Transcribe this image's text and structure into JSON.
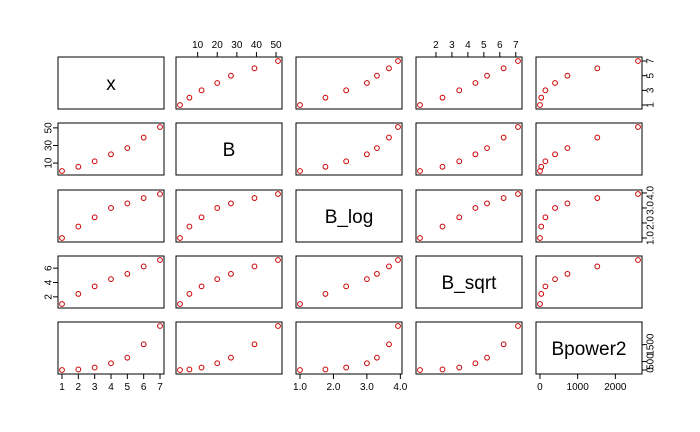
{
  "chart_data": {
    "type": "scatter",
    "title": "",
    "layout": "pairs-matrix",
    "variables": [
      {
        "name": "x",
        "values": [
          1,
          2,
          3,
          4,
          5,
          6,
          7
        ],
        "ticks": [
          1,
          3,
          5,
          7
        ],
        "lim": [
          1,
          7
        ]
      },
      {
        "name": "B",
        "values": [
          1,
          5.8,
          12,
          20,
          27,
          39,
          51
        ],
        "ticks": [
          10,
          20,
          30,
          40,
          50
        ],
        "lim": [
          1,
          51
        ]
      },
      {
        "name": "B_log",
        "values": [
          1,
          1.76,
          2.38,
          3.0,
          3.3,
          3.66,
          3.93
        ],
        "ticks": [
          1.0,
          2.0,
          3.0,
          4.0
        ],
        "lim": [
          1,
          3.93
        ]
      },
      {
        "name": "B_sqrt",
        "values": [
          1,
          2.41,
          3.46,
          4.47,
          5.2,
          6.24,
          7.14
        ],
        "ticks": [
          2,
          3,
          4,
          5,
          6,
          7
        ],
        "lim": [
          1,
          7.14
        ]
      },
      {
        "name": "Bpower2",
        "values": [
          1,
          34,
          144,
          400,
          729,
          1521,
          2601
        ],
        "ticks": [
          0,
          500,
          1500
        ],
        "lim": [
          1,
          2601
        ]
      }
    ],
    "tick_labels": {
      "x": [
        "1",
        "3",
        "5",
        "7"
      ],
      "B_bottom": [],
      "B": [
        "10",
        "20",
        "30",
        "40",
        "50"
      ],
      "B_log": [
        "1.0",
        "2.0",
        "3.0",
        "4.0"
      ],
      "B_sqrt": [
        "2",
        "3",
        "4",
        "5",
        "6",
        "7"
      ],
      "Bpower2": [
        "0",
        "500",
        "1500"
      ]
    },
    "bottom_tick_labels": {
      "x": [
        "1",
        "2",
        "3",
        "4",
        "5",
        "6",
        "7"
      ],
      "B_log": [
        "1.0",
        "2.0",
        "3.0",
        "4.0"
      ],
      "Bpower2": [
        "0",
        "1000",
        "2000"
      ]
    },
    "side_tick_labels": {
      "B": [
        "10",
        "30",
        "50"
      ],
      "B_sqrt": [
        "2",
        "4",
        "6"
      ],
      "x": [
        "1",
        "3",
        "5",
        "7"
      ],
      "B_log": [
        "1.0",
        "2.0",
        "3.0",
        "4.0"
      ],
      "Bpower2": [
        "0",
        "500",
        "1500"
      ]
    },
    "grid": false,
    "point_color": "#cc0000"
  }
}
